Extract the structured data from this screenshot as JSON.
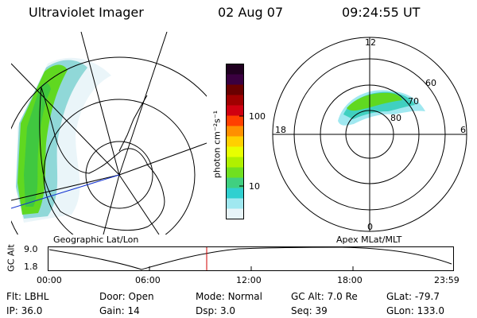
{
  "header": {
    "title": "Ultraviolet Imager",
    "date": "02 Aug 07",
    "time": "09:24:55 UT"
  },
  "colorbar": {
    "unit_label": "photon cm⁻²s⁻¹",
    "ticks": [
      "100",
      "10"
    ],
    "colors": [
      "#200020",
      "#3a0040",
      "#6a0000",
      "#a00000",
      "#d00010",
      "#ff4000",
      "#ff9000",
      "#ffd000",
      "#e8ff00",
      "#b0f000",
      "#70e020",
      "#40d080",
      "#30d0d0",
      "#a0e8f0",
      "#e8f4f8"
    ]
  },
  "geo_map": {
    "label": "Geographic Lat/Lon"
  },
  "polar_map": {
    "label": "Apex MLat/MLT",
    "mlt_labels": {
      "top": "12",
      "bottom": "0",
      "left": "18",
      "right": "6"
    },
    "lat_labels": [
      "60",
      "70",
      "80"
    ]
  },
  "altitude_plot": {
    "ylabel": "GC Alt",
    "yticks": [
      "9.0",
      "1.8"
    ],
    "xticks": [
      "00:00",
      "06:00",
      "12:00",
      "18:00",
      "23:59"
    ]
  },
  "info": {
    "row1": [
      {
        "label": "Flt:",
        "value": "LBHL"
      },
      {
        "label": "Door:",
        "value": "Open"
      },
      {
        "label": "Mode:",
        "value": "Normal"
      },
      {
        "label": "GC Alt:",
        "value": "7.0 Re"
      },
      {
        "label": "GLat:",
        "value": "-79.7"
      }
    ],
    "row2": [
      {
        "label": "IP:",
        "value": "36.0"
      },
      {
        "label": "Gain:",
        "value": "14"
      },
      {
        "label": "Dsp:",
        "value": "3.0"
      },
      {
        "label": "Seq:",
        "value": "39"
      },
      {
        "label": "GLon:",
        "value": "133.0"
      }
    ]
  }
}
